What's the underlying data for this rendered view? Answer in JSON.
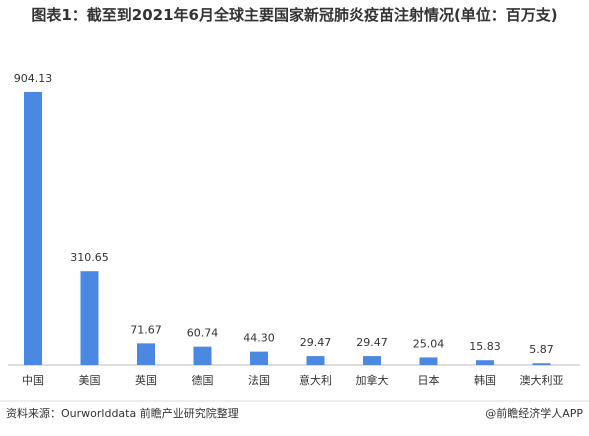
{
  "chart_data": {
    "type": "bar",
    "title": "图表1：截至到2021年6月全球主要国家新冠肺炎疫苗注射情况(单位：百万支)",
    "categories": [
      "中国",
      "美国",
      "英国",
      "德国",
      "法国",
      "意大利",
      "加拿大",
      "日本",
      "韩国",
      "澳大利亚"
    ],
    "values": [
      904.13,
      310.65,
      71.67,
      60.74,
      44.3,
      29.47,
      29.47,
      25.04,
      15.83,
      5.87
    ],
    "value_labels": [
      "904.13",
      "310.65",
      "71.67",
      "60.74",
      "44.30",
      "29.47",
      "29.47",
      "25.04",
      "15.83",
      "5.87"
    ],
    "color": "#4a88e2",
    "source": "资料来源：Ourworlddata 前瞻产业研究院整理",
    "credit": "@前瞻经济学人APP"
  }
}
